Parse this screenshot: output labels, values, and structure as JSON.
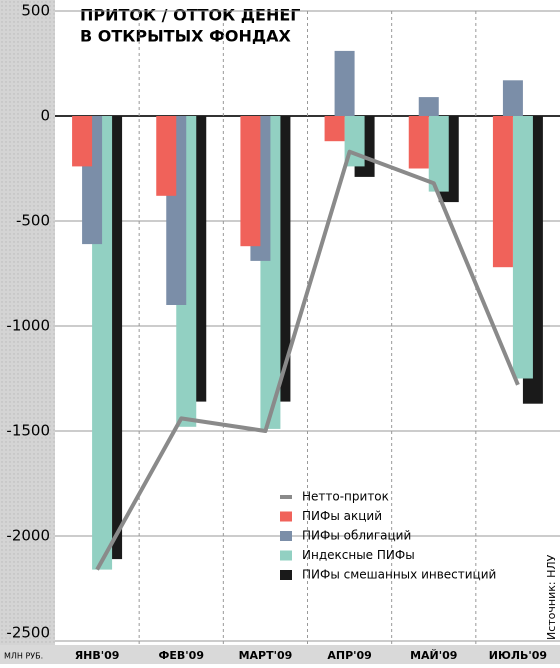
{
  "chart_data": {
    "type": "bar",
    "title": [
      "ПРИТОК / ОТТОК ДЕНЕГ",
      "В ОТКРЫТЫХ ФОНДАХ"
    ],
    "y_label": "МЛН РУБ.",
    "source": "Источник: НЛУ",
    "categories": [
      "ЯНВ'09",
      "ФЕВ'09",
      "МАРТ'09",
      "АПР'09",
      "МАЙ'09",
      "ИЮЛЬ'09"
    ],
    "series": [
      {
        "name": "Нетто-приток",
        "type": "line",
        "color": "#8a8a8a",
        "values": [
          -2160,
          -1440,
          -1500,
          -170,
          -320,
          -1280
        ]
      },
      {
        "name": "ПИФы акций",
        "color": "#f0625a",
        "values": [
          -240,
          -380,
          -620,
          -120,
          -250,
          -720
        ]
      },
      {
        "name": "ПИФы облигаций",
        "color": "#7b8ea8",
        "values": [
          -610,
          -900,
          -690,
          310,
          90,
          170
        ]
      },
      {
        "name": "Индексные ПИФы",
        "color": "#92d0c2",
        "values": [
          -2160,
          -1480,
          -1490,
          -240,
          -360,
          -1250
        ]
      },
      {
        "name": "ПИФы смешанных инвестиций",
        "color": "#1a1a1a",
        "values": [
          -2110,
          -1360,
          -1360,
          -290,
          -410,
          -1370
        ]
      }
    ],
    "ylim": [
      -2500,
      500
    ],
    "yticks": [
      500,
      0,
      -500,
      -1000,
      -1500,
      -2000,
      -2500
    ],
    "grid": true
  }
}
